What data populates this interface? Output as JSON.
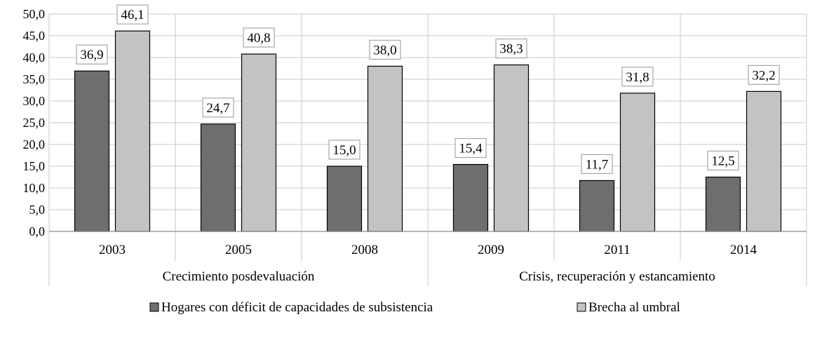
{
  "chart_data": {
    "type": "bar",
    "categories": [
      "2003",
      "2005",
      "2008",
      "2009",
      "2011",
      "2014"
    ],
    "groups": [
      {
        "label": "Crecimiento posdevaluación",
        "categories": [
          "2003",
          "2005",
          "2008"
        ]
      },
      {
        "label": "Crisis, recuperación y estancamiento",
        "categories": [
          "2009",
          "2011",
          "2014"
        ]
      }
    ],
    "series": [
      {
        "name": "Hogares con déficit de capacidades de subsistencia",
        "values": [
          36.9,
          24.7,
          15.0,
          15.4,
          11.7,
          12.5
        ],
        "labels": [
          "36,9",
          "24,7",
          "15,0",
          "15,4",
          "11,7",
          "12,5"
        ],
        "color": "#6e6e6e"
      },
      {
        "name": "Brecha al umbral",
        "values": [
          46.1,
          40.8,
          38.0,
          38.3,
          31.8,
          32.2
        ],
        "labels": [
          "46,1",
          "40,8",
          "38,0",
          "38,3",
          "31,8",
          "32,2"
        ],
        "color": "#c3c3c3"
      }
    ],
    "ylim": [
      0,
      50
    ],
    "ytick_labels": [
      "0,0",
      "5,0",
      "10,0",
      "15,0",
      "20,0",
      "25,0",
      "30,0",
      "35,0",
      "40,0",
      "45,0",
      "50,0"
    ],
    "grid": true,
    "legend_position": "bottom",
    "title": "",
    "xlabel": "",
    "ylabel": ""
  }
}
